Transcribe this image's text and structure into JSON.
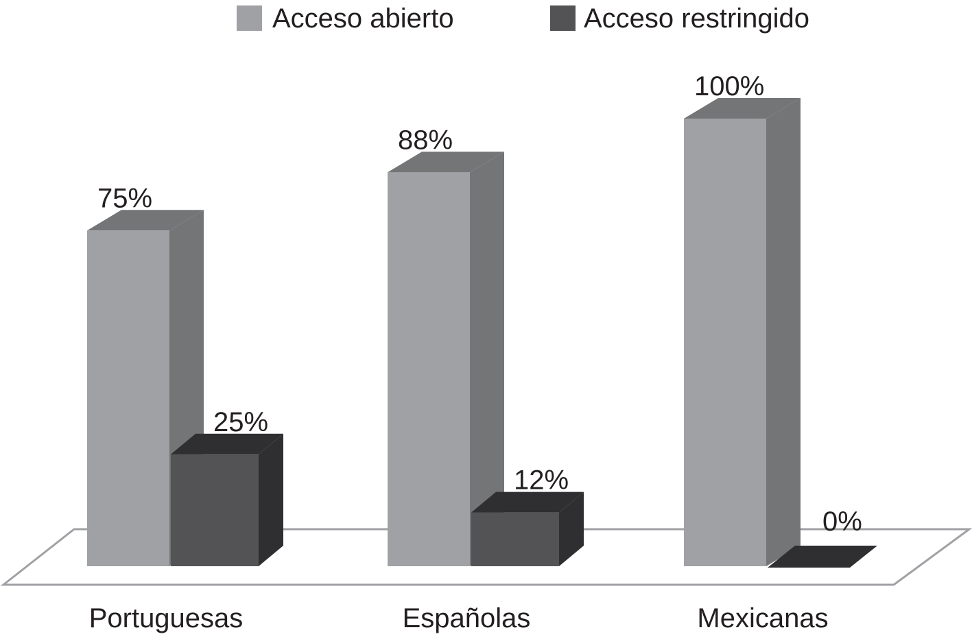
{
  "chart_data": {
    "type": "bar",
    "title": "",
    "xlabel": "",
    "ylabel": "",
    "ylim": [
      0,
      100
    ],
    "grid": false,
    "legend_position": "top",
    "categories": [
      "Portuguesas",
      "Españolas",
      "Mexicanas"
    ],
    "series": [
      {
        "name": "Acceso abierto",
        "values": [
          75,
          88,
          100
        ],
        "labels": [
          "75%",
          "88%",
          "100%"
        ],
        "color": "#a0a1a4",
        "side_color": "#747577"
      },
      {
        "name": "Acceso restringido",
        "values": [
          25,
          12,
          0
        ],
        "labels": [
          "25%",
          "12%",
          "0%"
        ],
        "color": "#535355",
        "side_color": "#2f2e30"
      }
    ]
  }
}
